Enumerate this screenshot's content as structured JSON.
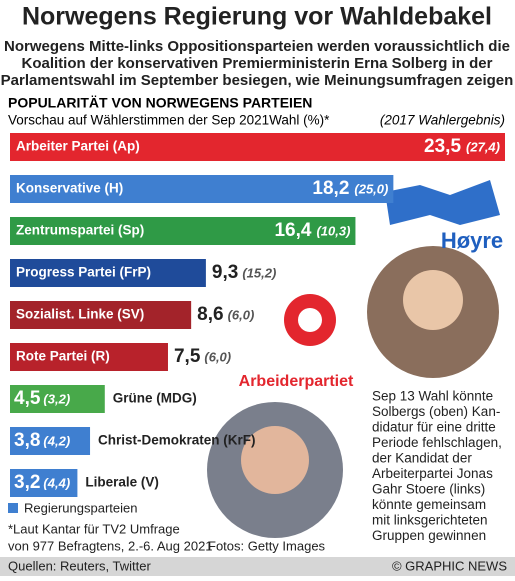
{
  "chart_data": {
    "type": "bar",
    "title": "Norwegens Regierung vor Wahldebakel",
    "subtitle": [
      "Norwegens Mitte-links Oppositionsparteien werden voraussichtlich die",
      "Koalition der konservativen Premierministerin Erna Solberg in der",
      "Parlamentswahl im September besiegen, wie Meinungsumfragen zeigen"
    ],
    "heading": "POPULARITÄT VON NORWEGENS PARTEIEN",
    "axis_label": "Vorschau auf Wählerstimmen der Sep 2021Wahl (%)*",
    "categories": [
      "Arbeiter Partei (Ap)",
      "Konservative (H)",
      "Zentrumspartei (Sp)",
      "Progress Partei (FrP)",
      "Sozialist. Linke (SV)",
      "Rote Partei (R)",
      "Grüne (MDG)",
      "Christ-Demokraten (KrF)",
      "Liberale (V)"
    ],
    "values": [
      23.5,
      18.2,
      16.4,
      9.3,
      8.6,
      7.5,
      4.5,
      3.8,
      3.2
    ],
    "value_labels": [
      "23,5",
      "18,2",
      "16,4",
      "9,3",
      "8,6",
      "7,5",
      "4,5",
      "3,8",
      "3,2"
    ],
    "colors": [
      "#e3262e",
      "#3f7fd0",
      "#2f9a46",
      "#1f4b9a",
      "#a3232a",
      "#b8222b",
      "#48a94a",
      "#3f7fd0",
      "#3f7fd0"
    ],
    "previous": {
      "name": "(2017 Wahlergebnis)",
      "values": [
        27.4,
        25.0,
        10.3,
        15.2,
        6.0,
        6.0,
        3.2,
        4.2,
        4.4
      ],
      "value_labels": [
        "(27,4)",
        "(25,0)",
        "(10,3)",
        "(15,2)",
        "(6,0)",
        "(6,0)",
        "(3,2)",
        "(4,2)",
        "(4,4)"
      ]
    },
    "legend": {
      "name": "Regierungsparteien",
      "color": "#3f7fd0"
    },
    "logos": [
      "Høyre",
      "Arbeiderpartiet"
    ],
    "annotation": [
      "Sep 13 Wahl könnte",
      "Solbergs (oben) Kan-",
      "didatur für eine dritte",
      "Periode fehlschlagen,",
      "der Kandidat der",
      "Arbeiterpartei Jonas",
      "Gahr Stoere (links)",
      "könnte gemeinsam",
      "mit linksgerichteten",
      "Gruppen gewinnen"
    ],
    "footnote": [
      "*Laut Kantar für TV2 Umfrage",
      "von 977 Befragtens, 2.-6. Aug 2021"
    ],
    "photo_credit": "Fotos: Getty Images",
    "source": "Quellen: Reuters, Twitter",
    "copyright": "© GRAPHIC NEWS"
  }
}
